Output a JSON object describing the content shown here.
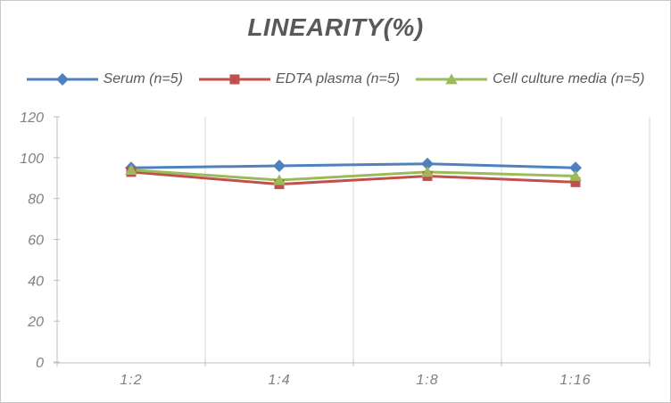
{
  "chart_data": {
    "type": "line",
    "title": "LINEARITY(%)",
    "categories": [
      "1:2",
      "1:4",
      "1:8",
      "1:16"
    ],
    "series": [
      {
        "name": "Serum (n=5)",
        "color": "#4F81BD",
        "marker": "diamond",
        "values": [
          95,
          96,
          97,
          95
        ]
      },
      {
        "name": "EDTA plasma (n=5)",
        "color": "#C0504D",
        "marker": "square",
        "values": [
          93,
          87,
          91,
          88
        ]
      },
      {
        "name": "Cell culture media (n=5)",
        "color": "#9BBB59",
        "marker": "triangle",
        "values": [
          94,
          89,
          93,
          91
        ]
      }
    ],
    "ylim": [
      0,
      120
    ],
    "yticks": [
      0,
      20,
      40,
      60,
      80,
      100,
      120
    ],
    "xlabel": "",
    "ylabel": "",
    "grid": "vertical-only",
    "legend_position": "top",
    "colors": {
      "title": "#595959",
      "legend_text": "#595959",
      "tick_label": "#7f7f7f",
      "axis_line": "#bfbfbf",
      "gridline": "#d9d9d9",
      "background": "#ffffff",
      "window_border": "#c9c9c9"
    }
  }
}
